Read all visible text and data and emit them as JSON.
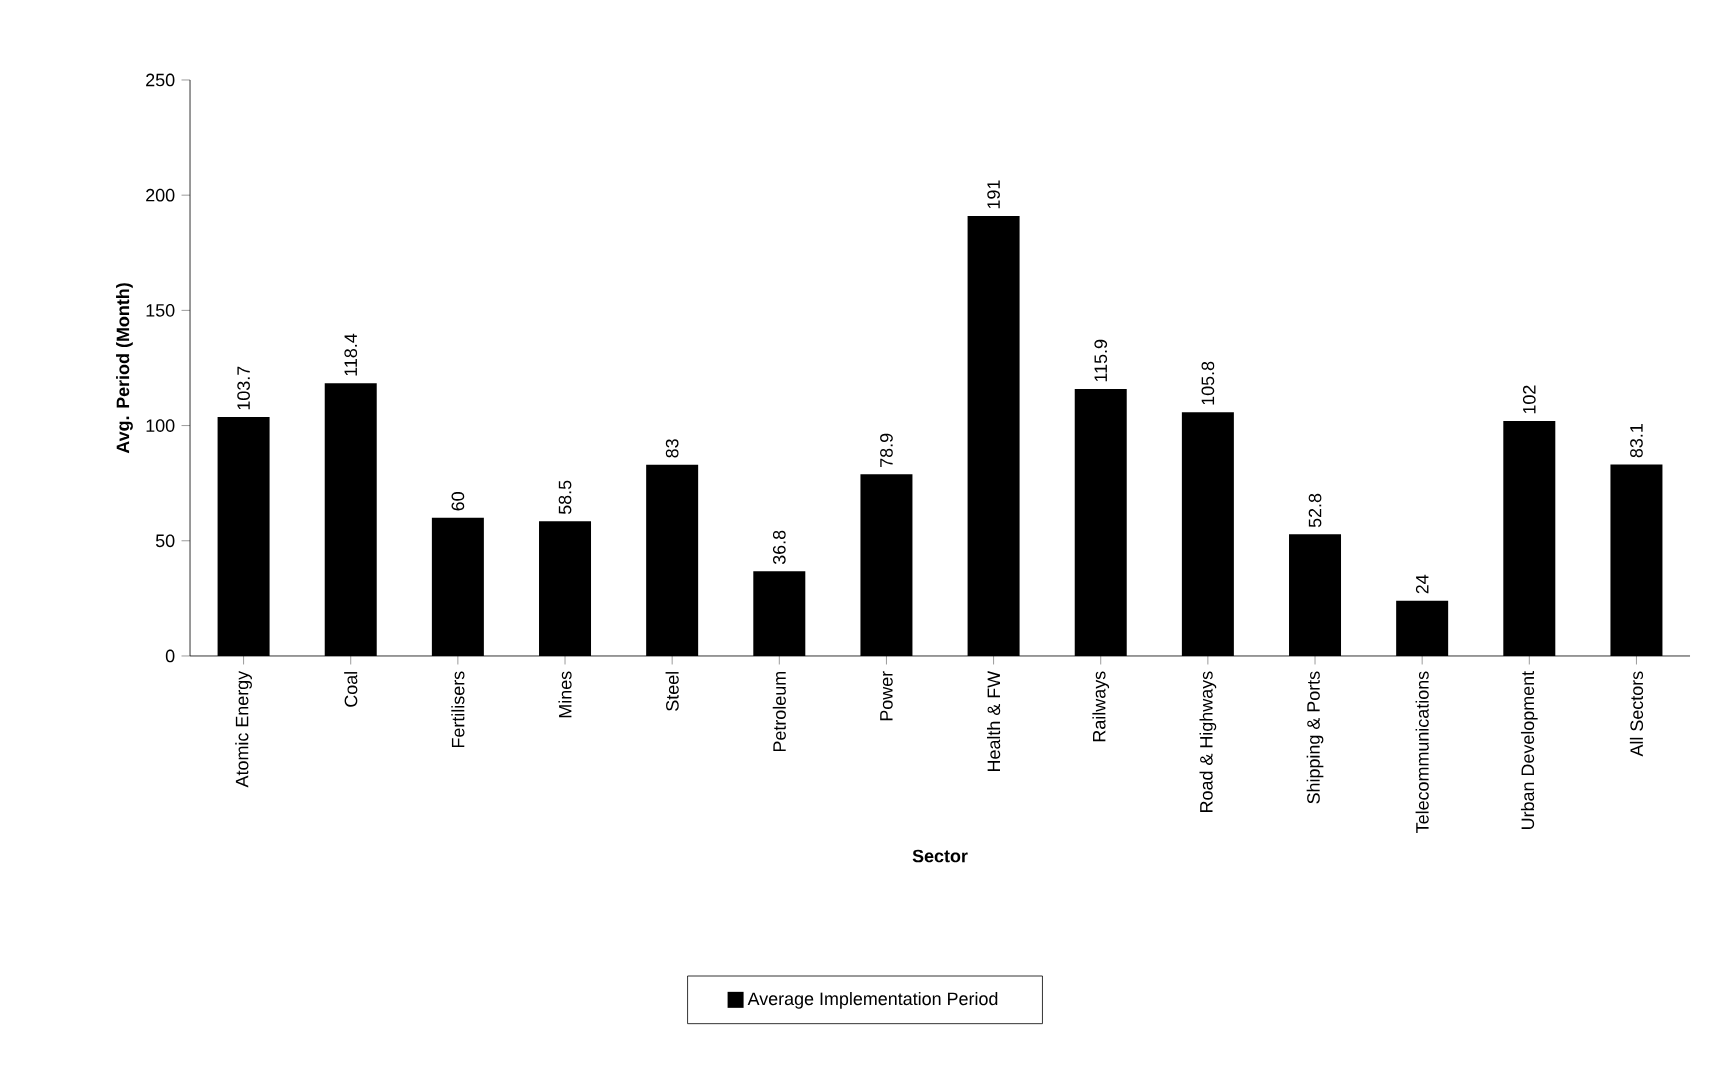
{
  "chart_data": {
    "type": "bar",
    "xlabel": "Sector",
    "ylabel": "Avg. Period (Month)",
    "categories": [
      "Atomic Energy",
      "Coal",
      "Fertilisers",
      "Mines",
      "Steel",
      "Petroleum",
      "Power",
      "Health & FW",
      "Railways",
      "Road & Highways",
      "Shipping & Ports",
      "Telecommunications",
      "Urban Development",
      "All Sectors"
    ],
    "series": [
      {
        "name": "Average Implementation Period",
        "color": "#000000",
        "values": [
          103.7,
          118.4,
          60,
          58.5,
          83,
          36.8,
          78.9,
          191,
          115.9,
          105.8,
          52.8,
          24,
          102,
          83.1
        ]
      }
    ],
    "ylim": [
      0,
      250
    ],
    "yticks": [
      0,
      50,
      100,
      150,
      200,
      250
    ],
    "data_labels": true,
    "legend": "bottom",
    "grid": false
  }
}
